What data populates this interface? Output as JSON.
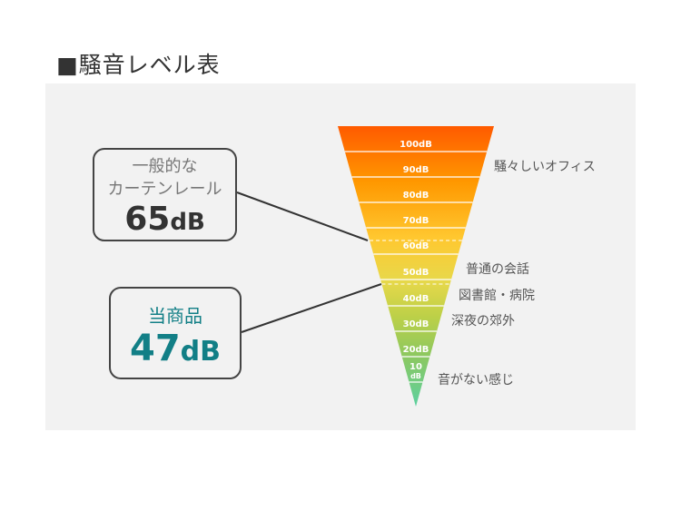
{
  "title": "■騒音レベル表",
  "callouts": [
    {
      "label_lines": [
        "一般的な",
        "カーテンレール"
      ],
      "value": "65",
      "unit": "dB",
      "color": "#333333"
    },
    {
      "label_lines": [
        "当商品"
      ],
      "value": "47",
      "unit": "dB",
      "color": "#127f86"
    }
  ],
  "levels": [
    "100dB",
    "90dB",
    "80dB",
    "70dB",
    "60dB",
    "50dB",
    "40dB",
    "30dB",
    "20dB",
    "10",
    "dB"
  ],
  "descriptions": [
    "騒々しいオフィス",
    "普通の会話",
    "図書館・病院",
    "深夜の郊外",
    "音がない感じ"
  ],
  "gradient_colors": [
    "#ff5a00",
    "#ff9800",
    "#ffc830",
    "#e8d84a",
    "#bcd048",
    "#8cc860",
    "#5cd0a0"
  ]
}
